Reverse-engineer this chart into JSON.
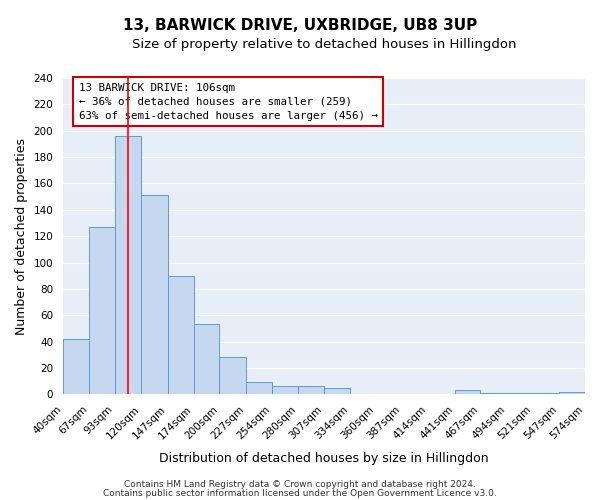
{
  "title": "13, BARWICK DRIVE, UXBRIDGE, UB8 3UP",
  "subtitle": "Size of property relative to detached houses in Hillingdon",
  "xlabel": "Distribution of detached houses by size in Hillingdon",
  "ylabel": "Number of detached properties",
  "footer_line1": "Contains HM Land Registry data © Crown copyright and database right 2024.",
  "footer_line2": "Contains public sector information licensed under the Open Government Licence v3.0.",
  "bin_labels": [
    "40sqm",
    "67sqm",
    "93sqm",
    "120sqm",
    "147sqm",
    "174sqm",
    "200sqm",
    "227sqm",
    "254sqm",
    "280sqm",
    "307sqm",
    "334sqm",
    "360sqm",
    "387sqm",
    "414sqm",
    "441sqm",
    "467sqm",
    "494sqm",
    "521sqm",
    "547sqm",
    "574sqm"
  ],
  "bar_values": [
    42,
    127,
    196,
    151,
    90,
    53,
    28,
    9,
    6,
    6,
    5,
    0,
    0,
    0,
    0,
    3,
    1,
    1,
    1,
    2
  ],
  "bin_edges": [
    40,
    67,
    93,
    120,
    147,
    174,
    200,
    227,
    254,
    280,
    307,
    334,
    360,
    387,
    414,
    441,
    467,
    494,
    521,
    547,
    574
  ],
  "bar_color": "#c5d8f0",
  "bar_edge_color": "#5b9bd5",
  "red_line_x": 106,
  "ylim": [
    0,
    240
  ],
  "yticks": [
    0,
    20,
    40,
    60,
    80,
    100,
    120,
    140,
    160,
    180,
    200,
    220,
    240
  ],
  "annotation_title": "13 BARWICK DRIVE: 106sqm",
  "annotation_line1": "← 36% of detached houses are smaller (259)",
  "annotation_line2": "63% of semi-detached houses are larger (456) →",
  "annotation_box_color": "#ffffff",
  "annotation_box_edge": "#cc0000",
  "fig_bg_color": "#ffffff",
  "plot_bg_color": "#e8eef8",
  "grid_color": "#ffffff",
  "title_fontsize": 11,
  "subtitle_fontsize": 9.5,
  "axis_label_fontsize": 9,
  "tick_fontsize": 7.5,
  "footer_fontsize": 6.5
}
